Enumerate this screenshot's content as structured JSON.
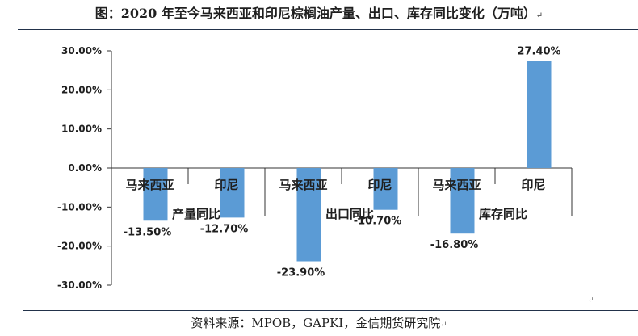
{
  "title": "图：2020 年至今马来西亚和印尼棕榈油产量、出口、库存同比变化（万吨）",
  "footer": "资料来源：MPOB，GAPKI，金信期货研究院",
  "colors": {
    "bar": "#5b9bd5",
    "axis": "#333333",
    "text": "#1f1f1f"
  },
  "chart_data": {
    "type": "bar",
    "y_ticks": [
      "30.00%",
      "20.00%",
      "10.00%",
      "0.00%",
      "-10.00%",
      "-20.00%",
      "-30.00%"
    ],
    "y_tick_values": [
      30,
      20,
      10,
      0,
      -10,
      -20,
      -30
    ],
    "ylim": [
      -30,
      30
    ],
    "grid": false,
    "groups": [
      "产量同比",
      "出口同比",
      "库存同比"
    ],
    "categories": [
      "马来西亚",
      "印尼",
      "马来西亚",
      "印尼",
      "马来西亚",
      "印尼"
    ],
    "values": [
      -13.5,
      -12.7,
      -23.9,
      -10.7,
      -16.8,
      27.4
    ],
    "data_labels": [
      "-13.50%",
      "-12.70%",
      "-23.90%",
      "-10.70%",
      "-16.80%",
      "27.40%"
    ]
  }
}
